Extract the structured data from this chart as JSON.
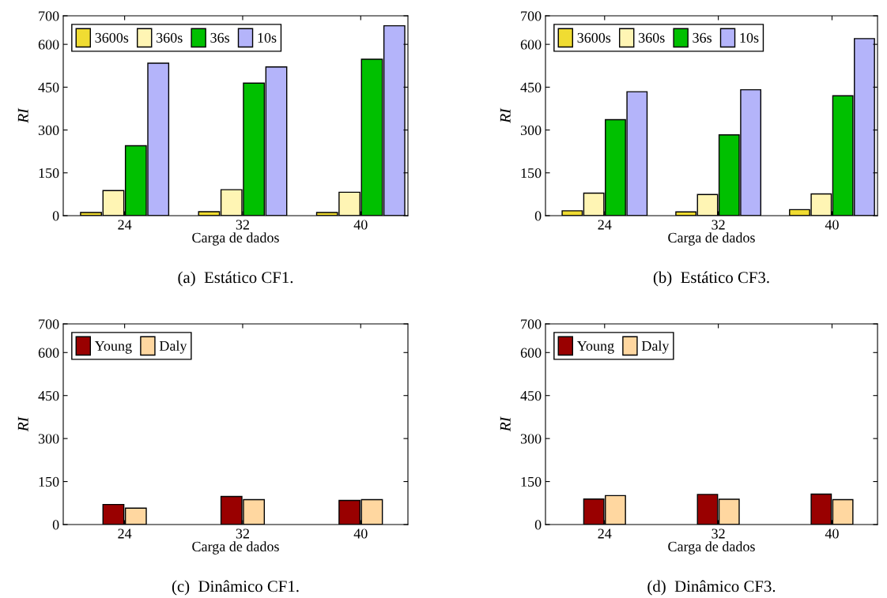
{
  "chart_data": [
    {
      "type": "bar",
      "title": "(a)  Estático CF1.",
      "xlabel": "Carga de dados",
      "ylabel": "RI",
      "categories": [
        "24",
        "32",
        "40"
      ],
      "ylim": [
        0,
        700
      ],
      "yticks": [
        0,
        150,
        300,
        450,
        600,
        700
      ],
      "legend": "top left",
      "grid": false,
      "series": [
        {
          "name": "3600s",
          "color": "#f0dc32",
          "values": [
            11,
            14,
            11
          ]
        },
        {
          "name": "360s",
          "color": "#fff5b4",
          "values": [
            88,
            91,
            82
          ]
        },
        {
          "name": "36s",
          "color": "#00c000",
          "values": [
            245,
            464,
            548
          ]
        },
        {
          "name": "10s",
          "color": "#b4b4fa",
          "values": [
            534,
            521,
            665
          ]
        }
      ]
    },
    {
      "type": "bar",
      "title": "(b)  Estático CF3.",
      "xlabel": "Carga de dados",
      "ylabel": "RI",
      "categories": [
        "24",
        "32",
        "40"
      ],
      "ylim": [
        0,
        700
      ],
      "yticks": [
        0,
        150,
        300,
        450,
        600,
        700
      ],
      "legend": "top left",
      "grid": false,
      "series": [
        {
          "name": "3600s",
          "color": "#f0dc32",
          "values": [
            17,
            13,
            21
          ]
        },
        {
          "name": "360s",
          "color": "#fff5b4",
          "values": [
            79,
            74,
            76
          ]
        },
        {
          "name": "36s",
          "color": "#00c000",
          "values": [
            336,
            283,
            420
          ]
        },
        {
          "name": "10s",
          "color": "#b4b4fa",
          "values": [
            434,
            441,
            620
          ]
        }
      ]
    },
    {
      "type": "bar",
      "title": "(c)  Dinâmico CF1.",
      "xlabel": "Carga de dados",
      "ylabel": "RI",
      "categories": [
        "24",
        "32",
        "40"
      ],
      "ylim": [
        0,
        700
      ],
      "yticks": [
        0,
        150,
        300,
        450,
        600,
        700
      ],
      "legend": "top left",
      "grid": false,
      "series": [
        {
          "name": "Young",
          "color": "#990000",
          "values": [
            70,
            98,
            84
          ]
        },
        {
          "name": "Daly",
          "color": "#ffd7a0",
          "values": [
            57,
            87,
            87
          ]
        }
      ]
    },
    {
      "type": "bar",
      "title": "(d)  Dinâmico CF3.",
      "xlabel": "Carga de dados",
      "ylabel": "RI",
      "categories": [
        "24",
        "32",
        "40"
      ],
      "ylim": [
        0,
        700
      ],
      "yticks": [
        0,
        150,
        300,
        450,
        600,
        700
      ],
      "legend": "top left",
      "grid": false,
      "series": [
        {
          "name": "Young",
          "color": "#990000",
          "values": [
            89,
            105,
            106
          ]
        },
        {
          "name": "Daly",
          "color": "#ffd7a0",
          "values": [
            101,
            88,
            87
          ]
        }
      ]
    }
  ]
}
